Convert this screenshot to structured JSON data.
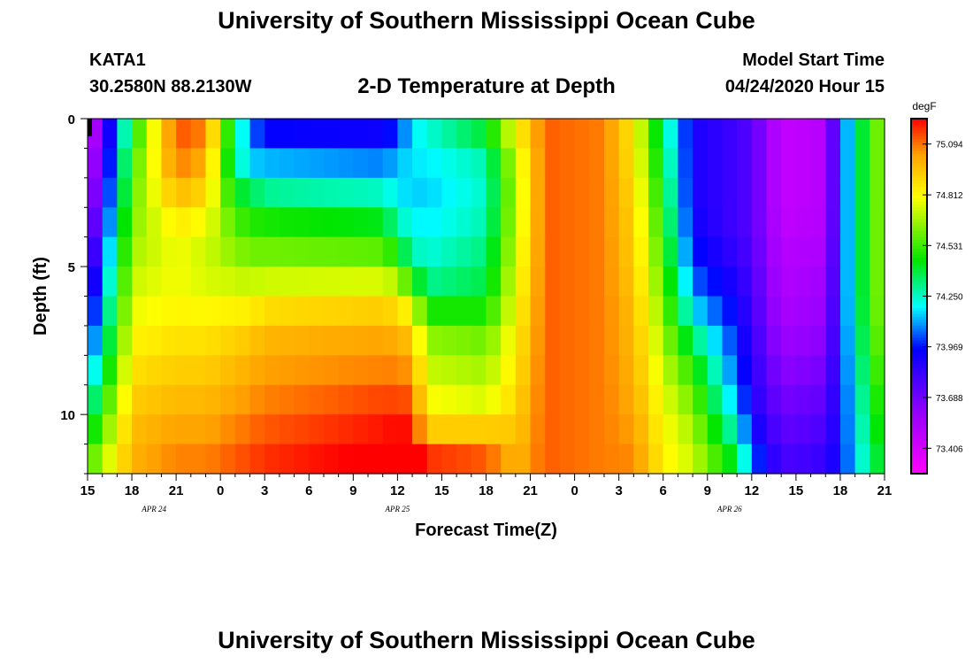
{
  "page": {
    "title": "University of Southern Mississippi Ocean Cube",
    "footer_title": "University of Southern Mississippi Ocean Cube",
    "station": "KATA1",
    "coordinates": "30.2580N 88.2130W",
    "subtitle": "2-D Temperature at Depth",
    "model_start_label": "Model Start Time",
    "model_start_value": "04/24/2020 Hour 15"
  },
  "chart_data": {
    "type": "heatmap",
    "title": "2-D Temperature at Depth",
    "xlabel": "Forecast Time(Z)",
    "ylabel": "Depth (ft)",
    "x_tick_labels": [
      "15",
      "18",
      "21",
      "0",
      "3",
      "6",
      "9",
      "12",
      "15",
      "18",
      "21",
      "0",
      "3",
      "6",
      "9",
      "12",
      "15",
      "18",
      "21"
    ],
    "x_tick_hours": [
      0,
      3,
      6,
      9,
      12,
      15,
      18,
      21,
      24,
      27,
      30,
      33,
      36,
      39,
      42,
      45,
      48,
      51,
      54
    ],
    "x_hour_range": [
      0,
      54
    ],
    "date_labels": [
      {
        "label": "APR 24",
        "hour": 4.5
      },
      {
        "label": "APR 25",
        "hour": 21
      },
      {
        "label": "APR 26",
        "hour": 43.5
      }
    ],
    "y_ticks": [
      0,
      5,
      10
    ],
    "y_tick_labels": [
      "0",
      "5",
      "10"
    ],
    "ylim": [
      0,
      12
    ],
    "y_inverted": true,
    "colorbar": {
      "unit": "degF",
      "min": 73.265,
      "max": 75.235,
      "ticks": [
        73.406,
        73.688,
        73.969,
        74.25,
        74.531,
        74.812,
        75.094
      ],
      "tick_labels": [
        "73.406",
        "73.688",
        "73.969",
        "74.250",
        "74.531",
        "74.812",
        "75.094"
      ]
    },
    "grid": false,
    "depths_ft": [
      0,
      1,
      2,
      3,
      4,
      5,
      6,
      7,
      8,
      9,
      10,
      11,
      12
    ],
    "hour_step": 1,
    "profile_keyframes": [
      {
        "hour": 0,
        "values": [
          73.35,
          73.4,
          73.45,
          73.5,
          73.6,
          73.7,
          73.8,
          73.9,
          74.0,
          74.15,
          74.3,
          74.45,
          74.6
        ]
      },
      {
        "hour": 3,
        "values": [
          74.4,
          74.5,
          74.55,
          74.6,
          74.65,
          74.7,
          74.75,
          74.8,
          74.85,
          74.9,
          74.95,
          74.98,
          75.0
        ]
      },
      {
        "hour": 6,
        "values": [
          75.15,
          75.12,
          75.05,
          74.9,
          74.8,
          74.78,
          74.8,
          74.85,
          74.9,
          74.95,
          75.0,
          75.05,
          75.1
        ]
      },
      {
        "hour": 8,
        "values": [
          75.1,
          75.05,
          74.95,
          74.85,
          74.75,
          74.72,
          74.78,
          74.85,
          74.9,
          74.95,
          75.0,
          75.05,
          75.1
        ]
      },
      {
        "hour": 10,
        "values": [
          74.4,
          74.25,
          74.35,
          74.5,
          74.6,
          74.68,
          74.78,
          74.88,
          74.95,
          75.0,
          75.05,
          75.1,
          75.15
        ]
      },
      {
        "hour": 11,
        "values": [
          74.15,
          74.0,
          74.3,
          74.45,
          74.55,
          74.65,
          74.78,
          74.9,
          74.98,
          75.02,
          75.08,
          75.12,
          75.18
        ]
      },
      {
        "hour": 12,
        "values": [
          73.85,
          74.05,
          74.2,
          74.4,
          74.55,
          74.65,
          74.82,
          74.95,
          75.02,
          75.05,
          75.1,
          75.15,
          75.2
        ]
      },
      {
        "hour": 20,
        "values": [
          73.85,
          74.0,
          74.15,
          74.35,
          74.5,
          74.65,
          74.85,
          75.0,
          75.05,
          75.1,
          75.2,
          75.22,
          75.3
        ]
      },
      {
        "hour": 21,
        "values": [
          73.9,
          74.1,
          74.15,
          74.2,
          74.35,
          74.55,
          74.82,
          74.95,
          75.05,
          75.1,
          75.2,
          75.25,
          75.35
        ]
      },
      {
        "hour": 22,
        "values": [
          74.15,
          74.2,
          74.15,
          74.15,
          74.25,
          74.3,
          74.7,
          74.9,
          75.0,
          75.08,
          75.18,
          75.25,
          75.35
        ]
      },
      {
        "hour": 23,
        "values": [
          74.25,
          74.2,
          74.15,
          74.15,
          74.2,
          74.25,
          74.35,
          74.6,
          74.7,
          74.75,
          74.85,
          75.0,
          75.35
        ]
      },
      {
        "hour": 27,
        "values": [
          74.5,
          74.3,
          74.25,
          74.25,
          74.3,
          74.35,
          74.4,
          74.55,
          74.65,
          74.7,
          74.8,
          75.05,
          75.2
        ]
      },
      {
        "hour": 29,
        "values": [
          74.85,
          74.75,
          74.7,
          74.7,
          74.72,
          74.75,
          74.78,
          74.82,
          74.85,
          74.88,
          74.92,
          74.95,
          75.0
        ]
      },
      {
        "hour": 31,
        "values": [
          75.12,
          75.12,
          75.12,
          75.12,
          75.12,
          75.12,
          75.12,
          75.12,
          75.12,
          75.12,
          75.12,
          75.12,
          75.12
        ]
      },
      {
        "hour": 35,
        "values": [
          75.08,
          75.08,
          75.08,
          75.08,
          75.08,
          75.08,
          75.08,
          75.08,
          75.08,
          75.08,
          75.08,
          75.08,
          75.08
        ]
      },
      {
        "hour": 37,
        "values": [
          74.85,
          74.85,
          74.88,
          74.9,
          74.92,
          74.93,
          74.95,
          74.97,
          74.98,
          75.0,
          75.02,
          75.05,
          75.08
        ]
      },
      {
        "hour": 39,
        "values": [
          74.3,
          74.35,
          74.4,
          74.45,
          74.5,
          74.55,
          74.6,
          74.65,
          74.7,
          74.75,
          74.8,
          74.82,
          74.85
        ]
      },
      {
        "hour": 41,
        "values": [
          73.9,
          73.9,
          73.9,
          73.9,
          73.95,
          74.0,
          74.1,
          74.25,
          74.45,
          74.55,
          74.65,
          74.7,
          74.75
        ]
      },
      {
        "hour": 44,
        "values": [
          73.8,
          73.8,
          73.8,
          73.8,
          73.8,
          73.85,
          73.9,
          73.95,
          74.0,
          74.05,
          74.15,
          74.3,
          74.45
        ]
      },
      {
        "hour": 45,
        "values": [
          73.75,
          73.75,
          73.75,
          73.75,
          73.75,
          73.78,
          73.8,
          73.82,
          73.85,
          73.88,
          73.9,
          74.0,
          74.1
        ]
      },
      {
        "hour": 47,
        "values": [
          73.45,
          73.45,
          73.45,
          73.45,
          73.48,
          73.5,
          73.52,
          73.55,
          73.6,
          73.65,
          73.7,
          73.75,
          73.8
        ]
      },
      {
        "hour": 50,
        "values": [
          73.5,
          73.5,
          73.5,
          73.5,
          73.52,
          73.55,
          73.58,
          73.6,
          73.65,
          73.7,
          73.75,
          73.8,
          73.85
        ]
      },
      {
        "hour": 51,
        "values": [
          73.95,
          73.95,
          73.95,
          73.95,
          73.95,
          73.95,
          73.95,
          73.95,
          73.95,
          73.95,
          73.95,
          73.95,
          73.95
        ]
      },
      {
        "hour": 52,
        "values": [
          74.3,
          74.3,
          74.3,
          74.3,
          74.3,
          74.3,
          74.3,
          74.28,
          74.25,
          74.22,
          74.2,
          74.18,
          74.15
        ]
      },
      {
        "hour": 54,
        "values": [
          74.7,
          74.7,
          74.7,
          74.7,
          74.7,
          74.7,
          74.7,
          74.68,
          74.65,
          74.6,
          74.55,
          74.5,
          74.45
        ]
      }
    ]
  }
}
